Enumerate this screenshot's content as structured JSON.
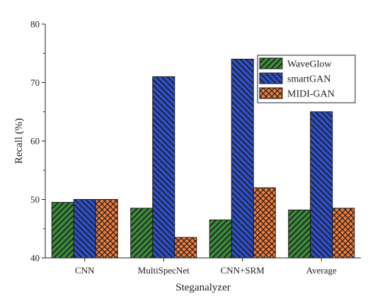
{
  "chart_data": {
    "type": "bar",
    "title": "",
    "xlabel": "Steganalyzer",
    "ylabel": "Recall (%)",
    "categories": [
      "CNN",
      "MultiSpecNet",
      "CNN+SRM",
      "Average"
    ],
    "series": [
      {
        "name": "WaveGlow",
        "values": [
          49.5,
          48.5,
          46.5,
          48.2
        ],
        "color": "#3a8a3a",
        "pattern": "diagonal-hatch-up"
      },
      {
        "name": "smartGAN",
        "values": [
          50.0,
          71.0,
          74.0,
          65.0
        ],
        "color": "#2e4fc8",
        "pattern": "diagonal-hatch-down"
      },
      {
        "name": "MIDI-GAN",
        "values": [
          50.0,
          43.5,
          52.0,
          48.5
        ],
        "color": "#ef7d3c",
        "pattern": "crosshatch"
      }
    ],
    "ylim": [
      40,
      80
    ],
    "yticks": [
      40,
      50,
      60,
      70,
      80
    ],
    "grid": false,
    "legend_position": "top-right"
  }
}
